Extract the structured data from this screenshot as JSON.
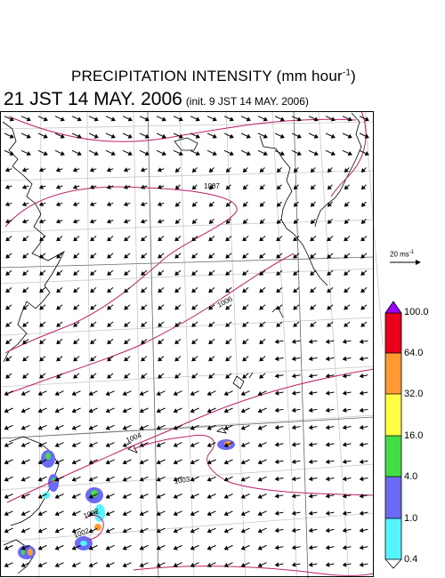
{
  "header": {
    "title": "PRECIPITATION INTENSITY (mm hour",
    "title_exp": "-1",
    "title_end": ")",
    "valid_time": "21 JST 14 MAY. 2006",
    "init_time": "(init. 9 JST 14 MAY. 2006)"
  },
  "map": {
    "isobar_labels": [
      "1007",
      "1006",
      "1004",
      "1003",
      "1002",
      "1002"
    ],
    "isobar_color": "#c0206a",
    "coast_color": "#000000",
    "grid_color": "#c8c8c8"
  },
  "wind_scale": {
    "label": "20 ms",
    "label_exp": "-1"
  },
  "colorbar": {
    "labels": [
      "100.0",
      "64.0",
      "32.0",
      "16.0",
      "4.0",
      "1.0",
      "0.4"
    ],
    "colors": [
      "#9b00ff",
      "#e8001c",
      "#ff9a33",
      "#ffff44",
      "#44dd44",
      "#6a6af2",
      "#55f4ff",
      "#ffffff"
    ]
  }
}
